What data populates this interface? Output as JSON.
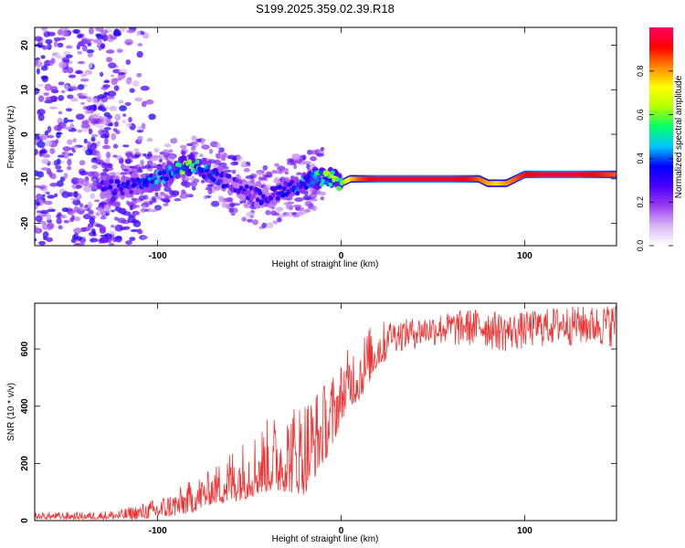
{
  "title": "S199.2025.359.02.39.R18",
  "chart_data": [
    {
      "type": "heatmap",
      "xlabel": "Height of straight line (km)",
      "ylabel": "Frequency (Hz)",
      "xlim": [
        -167,
        150
      ],
      "ylim": [
        -25,
        24
      ],
      "xticks": [
        -100,
        0,
        100
      ],
      "yticks": [
        -20,
        -10,
        0,
        10,
        20
      ],
      "colorbar": {
        "label": "Normalized spectral amplitude",
        "range": [
          0.0,
          1.0
        ],
        "ticks": [
          0.0,
          0.2,
          0.4,
          0.6,
          0.8
        ],
        "tick_labels": [
          "0.0",
          "0.2",
          "0.4",
          "0.6",
          "0.8"
        ],
        "colors": [
          "#ffffff",
          "#d9b7f5",
          "#9b3bf0",
          "#4b00ff",
          "#0000ff",
          "#00c8ff",
          "#00ff66",
          "#b4ff00",
          "#ffff00",
          "#ff8800",
          "#ff0000",
          "#ff0066"
        ]
      },
      "ridge": {
        "x": [
          -130,
          -120,
          -110,
          -100,
          -90,
          -85,
          -80,
          -75,
          -70,
          -65,
          -60,
          -55,
          -50,
          -45,
          -40,
          -35,
          -30,
          -25,
          -20,
          -15,
          -10,
          -5,
          0,
          5,
          10,
          15,
          20,
          30,
          40,
          50,
          60,
          70,
          75,
          80,
          85,
          90,
          95,
          100,
          110,
          120,
          130,
          140,
          150
        ],
        "y": [
          -12,
          -12,
          -11,
          -10,
          -8,
          -7,
          -7,
          -8,
          -9,
          -10,
          -11,
          -12,
          -13,
          -14,
          -14,
          -13,
          -12,
          -12,
          -11,
          -10,
          -10,
          -10,
          -11,
          -10,
          -10,
          -10,
          -10,
          -10,
          -10,
          -10,
          -10,
          -10,
          -10,
          -11,
          -11,
          -11,
          -10,
          -9,
          -9,
          -9,
          -9,
          -9,
          -9
        ],
        "amplitude": [
          0.3,
          0.35,
          0.35,
          0.45,
          0.5,
          0.6,
          0.55,
          0.5,
          0.4,
          0.35,
          0.3,
          0.3,
          0.3,
          0.3,
          0.3,
          0.35,
          0.35,
          0.4,
          0.45,
          0.55,
          0.6,
          0.65,
          0.55,
          0.75,
          0.85,
          0.9,
          0.95,
          0.95,
          0.95,
          0.95,
          0.95,
          0.9,
          0.85,
          0.8,
          0.75,
          0.8,
          0.85,
          0.9,
          0.95,
          0.95,
          0.95,
          0.9,
          0.85
        ]
      },
      "noise_region": {
        "x_range": [
          -167,
          -100
        ],
        "amplitude": 0.25
      }
    },
    {
      "type": "line",
      "xlabel": "Height of straight line (km)",
      "ylabel": "SNR (10 * v/v)",
      "xlim": [
        -167,
        150
      ],
      "ylim": [
        0,
        760
      ],
      "xticks": [
        -100,
        0,
        100
      ],
      "yticks": [
        0,
        200,
        400,
        600
      ],
      "color": "#ee3333",
      "series": [
        {
          "envelope": {
            "x": [
              -167,
              -140,
              -120,
              -110,
              -100,
              -90,
              -80,
              -70,
              -60,
              -50,
              -40,
              -30,
              -20,
              -10,
              -5,
              0,
              5,
              10,
              15,
              20,
              25,
              30,
              40,
              50,
              60,
              70,
              80,
              90,
              100,
              110,
              120,
              130,
              140,
              150
            ],
            "low": [
              5,
              5,
              5,
              5,
              10,
              15,
              30,
              60,
              60,
              80,
              100,
              100,
              90,
              200,
              250,
              350,
              400,
              420,
              480,
              540,
              560,
              550,
              560,
              570,
              560,
              560,
              550,
              540,
              550,
              560,
              560,
              560,
              550,
              560
            ],
            "high": [
              30,
              30,
              40,
              60,
              80,
              110,
              150,
              180,
              260,
              300,
              360,
              400,
              450,
              480,
              520,
              560,
              620,
              650,
              680,
              700,
              700,
              700,
              710,
              720,
              730,
              740,
              740,
              720,
              730,
              740,
              750,
              750,
              750,
              760
            ]
          }
        }
      ]
    }
  ]
}
